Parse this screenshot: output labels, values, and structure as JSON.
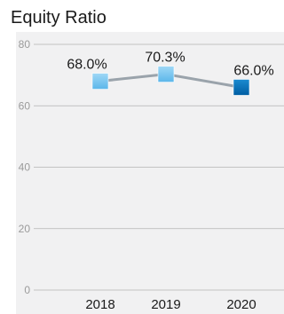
{
  "chart_data": {
    "type": "line",
    "title": "Equity Ratio",
    "categories": [
      "2018",
      "2019",
      "2020"
    ],
    "values": [
      68.0,
      70.3,
      66.0
    ],
    "data_labels": [
      "68.0%",
      "70.3%",
      "66.0%"
    ],
    "y_ticks": [
      "0",
      "20",
      "40",
      "60",
      "80"
    ],
    "ylim": [
      0,
      80
    ],
    "grid": true,
    "line_color": "#9aa3ab",
    "marker_colors": [
      "#74c4ee",
      "#74c4ee",
      "#0a72b9"
    ],
    "plot_background": "#f1f1f2"
  }
}
